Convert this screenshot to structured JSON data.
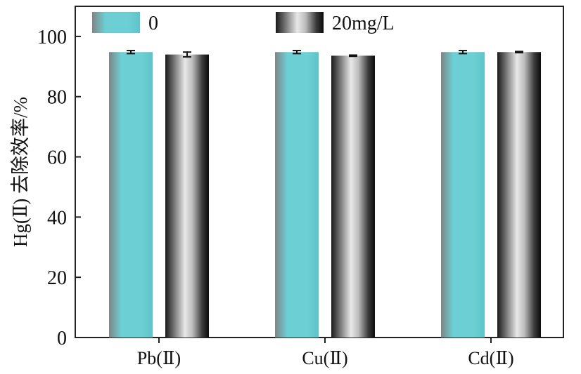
{
  "chart_data": {
    "type": "bar",
    "title": "",
    "xlabel": "",
    "ylabel": "Hg(Ⅱ) 去除效率/%",
    "ylim": [
      0,
      110
    ],
    "yticks": [
      0,
      20,
      40,
      60,
      80,
      100
    ],
    "categories": [
      "Pb(Ⅱ)",
      "Cu(Ⅱ)",
      "Cd(Ⅱ)"
    ],
    "series": [
      {
        "name": "0",
        "values": [
          94.8,
          94.8,
          94.8
        ],
        "errors": [
          0.5,
          0.5,
          0.5
        ],
        "color": "#6ccfd4"
      },
      {
        "name": "20mg/L",
        "values": [
          94.0,
          93.6,
          94.8
        ],
        "errors": [
          0.8,
          0.2,
          0.2
        ],
        "color": "#bdbdbd"
      }
    ],
    "legend": "top",
    "grid": false
  }
}
